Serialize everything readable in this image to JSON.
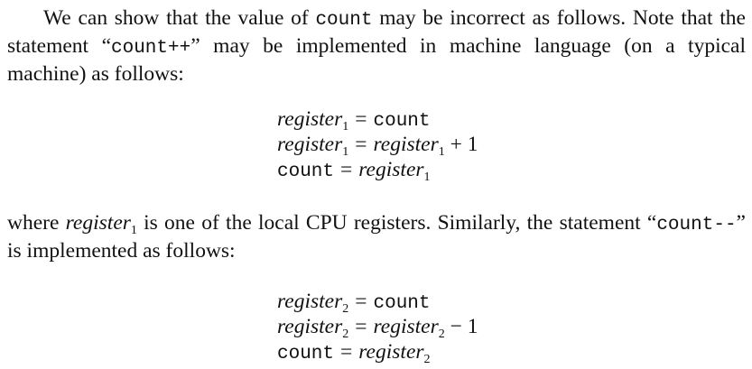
{
  "para1": {
    "pre": "We can show that the value of ",
    "code": "count",
    "mid": " may be incorrect as follows. Note that the statement “",
    "code2": "count++",
    "post": "” may be implemented in machine language (on a typical machine) as follows:"
  },
  "eq1": {
    "r1": {
      "lhs": "register",
      "lsub": "1",
      "op": "=",
      "rhs_code": "count"
    },
    "r2": {
      "lhs": "register",
      "lsub": "1",
      "op": "=",
      "rhs": "register",
      "rsub": "1",
      "tail": " + 1"
    },
    "r3": {
      "lhs_code": "count",
      "op": "=",
      "rhs": "register",
      "rsub": "1"
    }
  },
  "para2": {
    "pre": "where ",
    "reg": "register",
    "regsub": "1",
    "mid": " is one of the local CPU registers. Similarly, the statement “",
    "code": "count--",
    "post": "” is implemented as follows:"
  },
  "eq2": {
    "r1": {
      "lhs": "register",
      "lsub": "2",
      "op": "=",
      "rhs_code": "count"
    },
    "r2": {
      "lhs": "register",
      "lsub": "2",
      "op": "=",
      "rhs": "register",
      "rsub": "2",
      "tail": " − 1"
    },
    "r3": {
      "lhs_code": "count",
      "op": "=",
      "rhs": "register",
      "rsub": "2"
    }
  }
}
